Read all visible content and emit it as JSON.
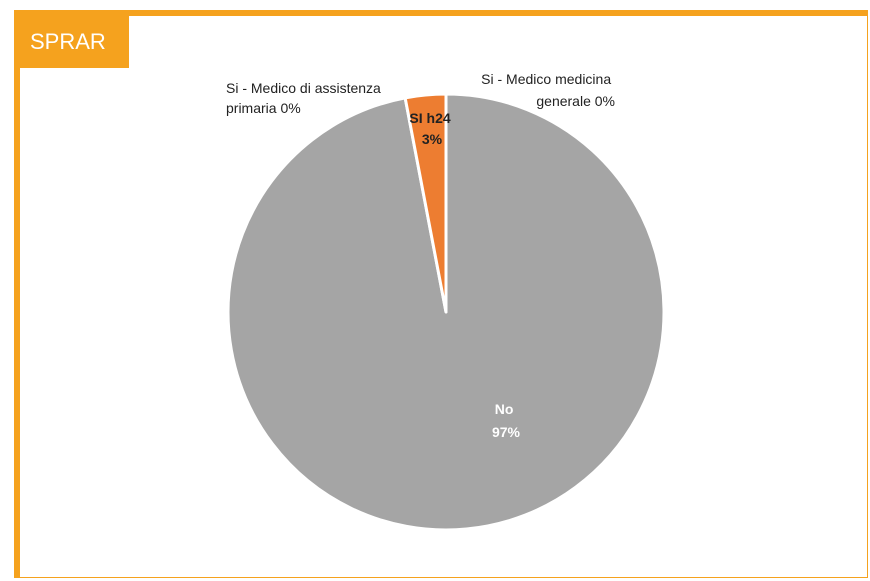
{
  "header": {
    "title": "SPRAR"
  },
  "colors": {
    "accent": "#f5a21e",
    "slice_no": "#a5a5a5",
    "slice_sih24": "#ed7d31"
  },
  "chart_data": {
    "type": "pie",
    "title": "",
    "slices": [
      {
        "label": "Si - Medico medicina generale",
        "line1": "Si - Medico medicina",
        "line2": "generale 0%",
        "value": 0,
        "color": "#4472c4"
      },
      {
        "label": "No",
        "line1": "No",
        "line2": "97%",
        "value": 97,
        "color": "#a5a5a5"
      },
      {
        "label": "Si - Medico di assistenza primaria",
        "line1": "Si - Medico di assistenza",
        "line2": "primaria 0%",
        "value": 0,
        "color": "#ffc000"
      },
      {
        "label": "SI h24",
        "line1": "SI h24",
        "line2": "3%",
        "value": 3,
        "color": "#ed7d31"
      }
    ]
  }
}
